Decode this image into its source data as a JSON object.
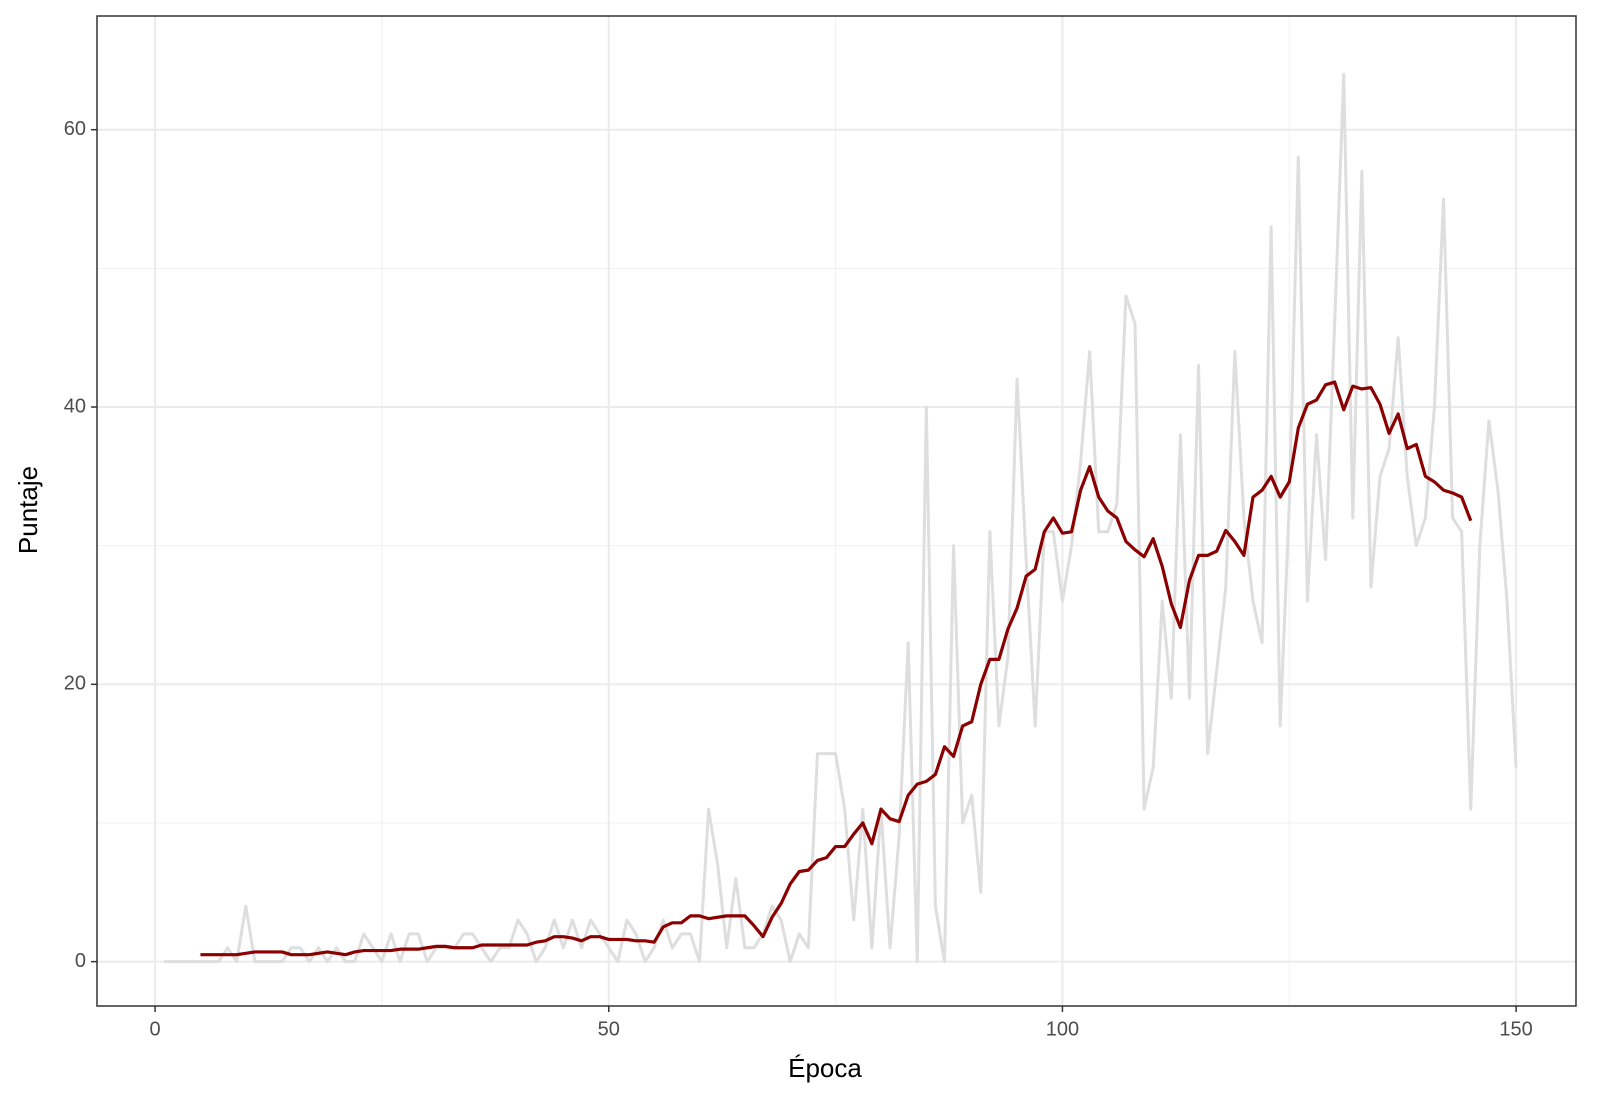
{
  "chart_data": {
    "type": "line",
    "xlabel": "Época",
    "ylabel": "Puntaje",
    "x": [
      1,
      2,
      3,
      4,
      5,
      6,
      7,
      8,
      9,
      10,
      11,
      12,
      13,
      14,
      15,
      16,
      17,
      18,
      19,
      20,
      21,
      22,
      23,
      24,
      25,
      26,
      27,
      28,
      29,
      30,
      31,
      32,
      33,
      34,
      35,
      36,
      37,
      38,
      39,
      40,
      41,
      42,
      43,
      44,
      45,
      46,
      47,
      48,
      49,
      50,
      51,
      52,
      53,
      54,
      55,
      56,
      57,
      58,
      59,
      60,
      61,
      62,
      63,
      64,
      65,
      66,
      67,
      68,
      69,
      70,
      71,
      72,
      73,
      74,
      75,
      76,
      77,
      78,
      79,
      80,
      81,
      82,
      83,
      84,
      85,
      86,
      87,
      88,
      89,
      90,
      91,
      92,
      93,
      94,
      95,
      96,
      97,
      98,
      99,
      100,
      101,
      102,
      103,
      104,
      105,
      106,
      107,
      108,
      109,
      110,
      111,
      112,
      113,
      114,
      115,
      116,
      117,
      118,
      119,
      120,
      121,
      122,
      123,
      124,
      125,
      126,
      127,
      128,
      129,
      130,
      131,
      132,
      133,
      134,
      135,
      136,
      137,
      138,
      139,
      140,
      141,
      142,
      143,
      144,
      145,
      146,
      147,
      148,
      149,
      150
    ],
    "series": [
      {
        "color": "#dedede",
        "values": [
          0,
          0,
          0,
          0,
          0,
          0,
          0,
          1,
          0,
          4,
          0,
          0,
          0,
          0,
          1,
          1,
          0,
          1,
          0,
          1,
          0,
          0,
          2,
          1,
          0,
          2,
          0,
          2,
          2,
          0,
          1,
          1,
          1,
          2,
          2,
          1,
          0,
          1,
          1,
          3,
          2,
          0,
          1,
          3,
          1,
          3,
          1,
          3,
          2,
          1,
          0,
          3,
          2,
          0,
          1,
          3,
          1,
          2,
          2,
          0,
          11,
          7,
          1,
          6,
          1,
          1,
          2,
          4,
          3,
          0,
          2,
          1,
          15,
          15,
          15,
          11,
          3,
          11,
          1,
          11,
          1,
          9,
          23,
          0,
          40,
          4,
          0,
          30,
          10,
          12,
          5,
          31,
          17,
          22,
          42,
          29,
          17,
          31,
          31,
          26,
          30,
          36,
          44,
          31,
          31,
          33,
          48,
          46,
          11,
          14,
          26,
          19,
          38,
          19,
          43,
          15,
          21,
          27,
          44,
          32,
          26,
          23,
          53,
          17,
          33,
          58,
          26,
          38,
          29,
          46,
          64,
          32,
          57,
          27,
          35,
          37,
          45,
          35,
          30,
          32,
          40,
          55,
          32,
          31,
          11,
          30,
          39,
          34,
          26,
          14
        ]
      },
      {
        "color": "#8b0000",
        "values": [
          null,
          null,
          null,
          null,
          0.5,
          0.5,
          0.5,
          0.5,
          0.5,
          0.6,
          0.7,
          0.7,
          0.7,
          0.7,
          0.5,
          0.5,
          0.5,
          0.6,
          0.7,
          0.6,
          0.5,
          0.7,
          0.8,
          0.8,
          0.8,
          0.8,
          0.9,
          0.9,
          0.9,
          1,
          1.1,
          1.1,
          1,
          1,
          1,
          1.2,
          1.2,
          1.2,
          1.2,
          1.2,
          1.2,
          1.4,
          1.5,
          1.8,
          1.8,
          1.7,
          1.5,
          1.8,
          1.8,
          1.6,
          1.6,
          1.6,
          1.5,
          1.5,
          1.4,
          2.5,
          2.8,
          2.8,
          3.3,
          3.3,
          3.1,
          3.2,
          3.3,
          3.3,
          3.3,
          2.6,
          1.8,
          3.2,
          4.2,
          5.6,
          6.5,
          6.6,
          7.3,
          7.5,
          8.3,
          8.3,
          9.2,
          10,
          8.5,
          11,
          10.3,
          10.1,
          12,
          12.8,
          13,
          13.5,
          15.5,
          14.8,
          17,
          17.3,
          20,
          21.8,
          21.8,
          24,
          25.5,
          27.8,
          28.3,
          31,
          32,
          30.9,
          31,
          34,
          35.7,
          33.5,
          32.5,
          32,
          30.3,
          29.7,
          29.2,
          30.5,
          28.5,
          25.8,
          24.1,
          27.5,
          29.3,
          29.3,
          29.6,
          31.1,
          30.3,
          29.3,
          33.5,
          34,
          35,
          33.5,
          34.6,
          38.5,
          40.2,
          40.5,
          41.6,
          41.8,
          39.8,
          41.5,
          41.3,
          41.4,
          40.2,
          38.1,
          39.5,
          37,
          37.3,
          35,
          34.6,
          34,
          33.8,
          33.5,
          31.8,
          null,
          null,
          null,
          null,
          null
        ]
      }
    ],
    "xlim": [
      -6.4,
      156.6
    ],
    "ylim": [
      -3.2,
      68.2
    ],
    "xticks": [
      0,
      50,
      100,
      150
    ],
    "yticks": [
      0,
      20,
      40,
      60
    ],
    "xminor": [
      25,
      75,
      125
    ],
    "yminor": [
      10,
      30,
      50
    ],
    "grid": true
  }
}
